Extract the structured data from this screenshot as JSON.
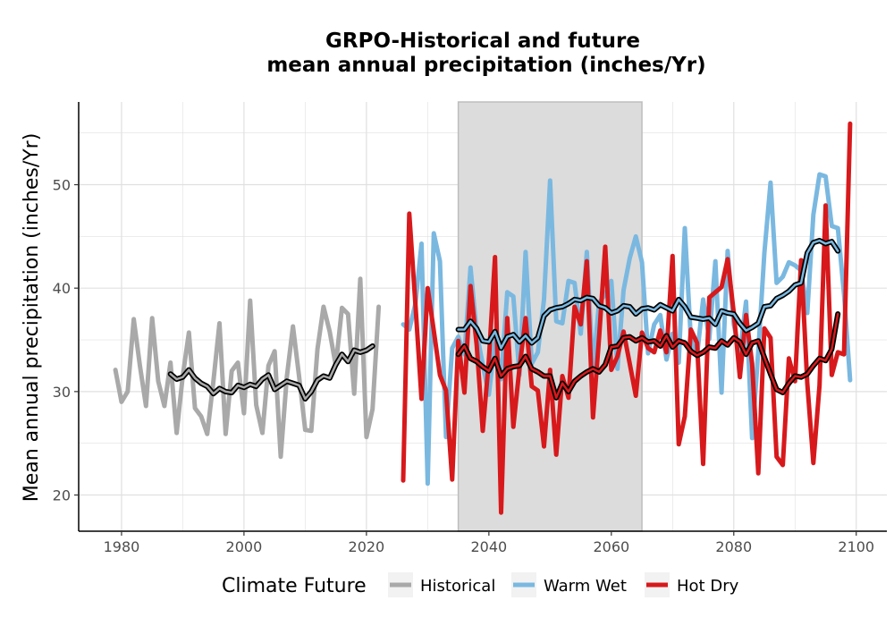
{
  "chart_data": {
    "type": "line",
    "title_lines": [
      "GRPO-Historical and future",
      "mean annual precipitation (inches/Yr)"
    ],
    "xlabel": "",
    "ylabel": "Mean annual precipitation (inches/Yr)",
    "xlim": [
      1973,
      2105
    ],
    "ylim": [
      16.5,
      58
    ],
    "xticks": [
      1980,
      2000,
      2020,
      2040,
      2060,
      2080,
      2100
    ],
    "yticks": [
      20,
      30,
      40,
      50
    ],
    "grid": true,
    "shaded_period": [
      2035,
      2065
    ],
    "legend": {
      "title": "Climate Future",
      "placement": "bottom",
      "entries": [
        "Historical",
        "Warm Wet",
        "Hot Dry"
      ]
    },
    "colors": {
      "Historical": "#a9a9a9",
      "Warm Wet": "#7ab8e0",
      "Hot Dry": "#d7191c",
      "smooth": "#000000",
      "shade": "#dcdcdc",
      "grid": "#e0e0e0"
    },
    "series": [
      {
        "name": "Historical",
        "x_start": 1979,
        "values": [
          32.1,
          29.0,
          30.0,
          37.0,
          32.5,
          28.6,
          37.1,
          31.0,
          28.6,
          32.8,
          26.0,
          31.5,
          35.7,
          28.4,
          27.6,
          25.9,
          31.0,
          36.6,
          25.9,
          32.0,
          32.8,
          27.9,
          38.8,
          28.7,
          26.0,
          32.5,
          33.9,
          23.7,
          31.4,
          36.3,
          31.5,
          26.3,
          26.2,
          34.1,
          38.2,
          35.8,
          32.5,
          38.1,
          37.5,
          29.8,
          40.9,
          25.6,
          28.3,
          38.2
        ]
      },
      {
        "name": "Historical smooth",
        "x_start": 1988,
        "values": [
          31.7,
          31.2,
          31.4,
          32.1,
          31.3,
          30.8,
          30.5,
          29.8,
          30.3,
          30.0,
          29.9,
          30.6,
          30.4,
          30.7,
          30.5,
          31.2,
          31.6,
          30.2,
          30.6,
          31.0,
          30.8,
          30.6,
          29.3,
          30.0,
          31.1,
          31.5,
          31.3,
          32.6,
          33.6,
          32.9,
          34.0,
          33.8,
          34.0,
          34.4
        ]
      },
      {
        "name": "Warm Wet",
        "x_start": 2026,
        "values": [
          36.5,
          36.0,
          38.5,
          44.3,
          21.1,
          45.3,
          42.6,
          25.6,
          34.2,
          35.3,
          33.6,
          42.0,
          35.7,
          32.6,
          29.7,
          34.9,
          31.2,
          39.6,
          39.2,
          31.6,
          43.5,
          32.7,
          33.8,
          38.9,
          50.4,
          36.8,
          36.6,
          40.7,
          40.5,
          35.6,
          43.5,
          32.0,
          38.6,
          39.4,
          40.7,
          32.2,
          39.8,
          42.9,
          45.0,
          42.5,
          33.7,
          36.5,
          37.4,
          33.1,
          35.6,
          32.8,
          45.8,
          35.0,
          33.5,
          38.9,
          35.1,
          42.6,
          29.9,
          43.6,
          36.5,
          33.7,
          38.7,
          25.5,
          33.9,
          43.4,
          50.2,
          40.5,
          41.1,
          42.5,
          42.2,
          41.7,
          37.6,
          47.1,
          51.0,
          50.8,
          46.0,
          45.8,
          39.4,
          31.1
        ]
      },
      {
        "name": "Warm Wet smooth",
        "x_start": 2035,
        "values": [
          36.0,
          36.0,
          36.8,
          36.1,
          34.9,
          34.8,
          35.8,
          34.2,
          35.3,
          35.5,
          34.8,
          35.4,
          34.7,
          35.2,
          37.3,
          37.9,
          38.1,
          38.2,
          38.5,
          38.9,
          38.8,
          39.1,
          39.0,
          38.3,
          38.1,
          37.6,
          37.8,
          38.3,
          38.2,
          37.5,
          38.0,
          38.1,
          37.9,
          38.4,
          38.1,
          37.8,
          38.9,
          38.2,
          37.2,
          37.1,
          37.0,
          37.1,
          36.5,
          37.8,
          37.6,
          37.5,
          36.6,
          35.9,
          36.2,
          36.6,
          38.2,
          38.3,
          39.0,
          39.3,
          39.7,
          40.3,
          40.5,
          43.4,
          44.4,
          44.6,
          44.3,
          44.5,
          43.6
        ]
      },
      {
        "name": "Hot Dry",
        "x_start": 2026,
        "values": [
          21.4,
          47.2,
          38.4,
          29.3,
          40.0,
          35.9,
          31.6,
          30.1,
          21.5,
          34.9,
          29.9,
          40.2,
          34.5,
          26.2,
          33.0,
          43.0,
          18.3,
          37.1,
          26.6,
          32.3,
          37.1,
          30.5,
          30.1,
          24.7,
          32.1,
          23.9,
          31.5,
          29.4,
          38.2,
          36.5,
          42.6,
          27.5,
          35.2,
          44.0,
          32.1,
          33.4,
          35.8,
          32.7,
          29.6,
          35.7,
          34.2,
          33.8,
          35.9,
          33.8,
          43.1,
          24.9,
          27.6,
          36.0,
          34.7,
          23.0,
          39.1,
          39.6,
          40.1,
          42.8,
          37.6,
          31.4,
          37.4,
          32.7,
          22.1,
          36.1,
          35.2,
          23.7,
          22.9,
          33.2,
          31.0,
          42.7,
          30.8,
          23.1,
          30.6,
          48.0,
          31.6,
          33.8,
          33.6,
          55.9
        ]
      },
      {
        "name": "Hot Dry smooth",
        "x_start": 2035,
        "values": [
          33.6,
          34.4,
          33.2,
          32.9,
          32.4,
          32.0,
          33.2,
          31.5,
          32.2,
          32.4,
          32.5,
          33.4,
          32.2,
          31.9,
          31.5,
          31.5,
          29.4,
          30.8,
          30.0,
          31.0,
          31.5,
          31.9,
          32.2,
          31.9,
          32.6,
          34.3,
          34.4,
          35.2,
          35.3,
          34.9,
          35.2,
          34.8,
          34.9,
          34.4,
          35.4,
          34.3,
          34.9,
          34.7,
          33.9,
          33.5,
          33.8,
          34.3,
          34.2,
          34.9,
          34.5,
          35.2,
          34.8,
          33.6,
          34.7,
          34.9,
          33.3,
          31.7,
          30.2,
          29.9,
          30.8,
          31.5,
          31.4,
          31.7,
          32.5,
          33.2,
          33.0,
          34.1,
          37.5
        ]
      }
    ]
  }
}
